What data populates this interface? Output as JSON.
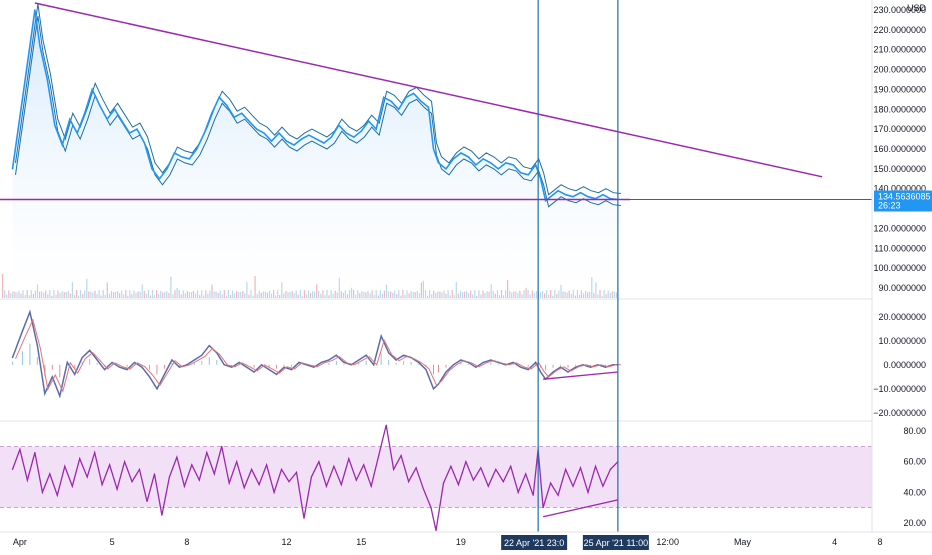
{
  "chart_data": [
    {
      "type": "area",
      "pane": "price",
      "currency": "USD",
      "ylim": [
        85,
        235
      ],
      "y_ticks": [
        "230.0000000",
        "220.0000000",
        "210.0000000",
        "200.0000000",
        "190.0000000",
        "180.0000000",
        "170.0000000",
        "160.0000000",
        "150.0000000",
        "140.0000000",
        "130.0000000",
        "120.0000000",
        "110.0000000",
        "100.0000000",
        "90.0000000"
      ],
      "x_ticks": [
        "Apr",
        "5",
        "8",
        "12",
        "15",
        "19",
        "12:00",
        "May",
        "4",
        "8"
      ],
      "current_price": "134.5636085",
      "countdown": "26:23",
      "series_close": [
        {
          "day": 1.0,
          "v": 150
        },
        {
          "day": 1.4,
          "v": 185
        },
        {
          "day": 1.7,
          "v": 212
        },
        {
          "day": 1.9,
          "v": 230
        },
        {
          "day": 2.1,
          "v": 212
        },
        {
          "day": 2.4,
          "v": 195
        },
        {
          "day": 2.7,
          "v": 172
        },
        {
          "day": 3.0,
          "v": 162
        },
        {
          "day": 3.3,
          "v": 175
        },
        {
          "day": 3.6,
          "v": 168
        },
        {
          "day": 3.9,
          "v": 178
        },
        {
          "day": 4.2,
          "v": 190
        },
        {
          "day": 4.5,
          "v": 182
        },
        {
          "day": 4.8,
          "v": 175
        },
        {
          "day": 5.1,
          "v": 180
        },
        {
          "day": 5.4,
          "v": 174
        },
        {
          "day": 5.7,
          "v": 168
        },
        {
          "day": 6.0,
          "v": 170
        },
        {
          "day": 6.3,
          "v": 163
        },
        {
          "day": 6.6,
          "v": 150
        },
        {
          "day": 6.9,
          "v": 145
        },
        {
          "day": 7.2,
          "v": 150
        },
        {
          "day": 7.5,
          "v": 158
        },
        {
          "day": 7.8,
          "v": 156
        },
        {
          "day": 8.1,
          "v": 155
        },
        {
          "day": 8.4,
          "v": 160
        },
        {
          "day": 8.7,
          "v": 168
        },
        {
          "day": 9.0,
          "v": 178
        },
        {
          "day": 9.3,
          "v": 186
        },
        {
          "day": 9.6,
          "v": 182
        },
        {
          "day": 9.9,
          "v": 176
        },
        {
          "day": 10.2,
          "v": 178
        },
        {
          "day": 10.5,
          "v": 174
        },
        {
          "day": 10.8,
          "v": 170
        },
        {
          "day": 11.1,
          "v": 168
        },
        {
          "day": 11.4,
          "v": 164
        },
        {
          "day": 11.7,
          "v": 168
        },
        {
          "day": 12.0,
          "v": 164
        },
        {
          "day": 12.3,
          "v": 162
        },
        {
          "day": 12.6,
          "v": 165
        },
        {
          "day": 12.9,
          "v": 167
        },
        {
          "day": 13.2,
          "v": 165
        },
        {
          "day": 13.5,
          "v": 163
        },
        {
          "day": 13.8,
          "v": 166
        },
        {
          "day": 14.1,
          "v": 172
        },
        {
          "day": 14.4,
          "v": 168
        },
        {
          "day": 14.7,
          "v": 166
        },
        {
          "day": 15.0,
          "v": 169
        },
        {
          "day": 15.3,
          "v": 174
        },
        {
          "day": 15.6,
          "v": 170
        },
        {
          "day": 15.9,
          "v": 186
        },
        {
          "day": 16.2,
          "v": 184
        },
        {
          "day": 16.5,
          "v": 180
        },
        {
          "day": 16.8,
          "v": 186
        },
        {
          "day": 17.1,
          "v": 188
        },
        {
          "day": 17.4,
          "v": 184
        },
        {
          "day": 17.7,
          "v": 181
        },
        {
          "day": 17.9,
          "v": 160
        },
        {
          "day": 18.1,
          "v": 153
        },
        {
          "day": 18.4,
          "v": 150
        },
        {
          "day": 18.7,
          "v": 155
        },
        {
          "day": 19.0,
          "v": 158
        },
        {
          "day": 19.3,
          "v": 156
        },
        {
          "day": 19.6,
          "v": 152
        },
        {
          "day": 19.9,
          "v": 155
        },
        {
          "day": 20.2,
          "v": 153
        },
        {
          "day": 20.5,
          "v": 150
        },
        {
          "day": 20.8,
          "v": 153
        },
        {
          "day": 21.1,
          "v": 152
        },
        {
          "day": 21.4,
          "v": 148
        },
        {
          "day": 21.7,
          "v": 147
        },
        {
          "day": 22.0,
          "v": 152
        },
        {
          "day": 22.2,
          "v": 145
        },
        {
          "day": 22.4,
          "v": 134
        },
        {
          "day": 22.6,
          "v": 136
        },
        {
          "day": 22.9,
          "v": 139
        },
        {
          "day": 23.2,
          "v": 137
        },
        {
          "day": 23.5,
          "v": 136
        },
        {
          "day": 23.8,
          "v": 138
        },
        {
          "day": 24.1,
          "v": 136
        },
        {
          "day": 24.4,
          "v": 135
        },
        {
          "day": 24.7,
          "v": 137
        },
        {
          "day": 25.0,
          "v": 135
        },
        {
          "day": 25.3,
          "v": 134.56
        }
      ],
      "trendline_resistance": [
        {
          "day": 1.9,
          "v": 233.5
        },
        {
          "day": 33.5,
          "v": 146
        }
      ],
      "horizontal_support": {
        "v": 134.56
      },
      "vertical_markers_day": [
        22.1,
        25.3
      ],
      "time_badges": [
        "22 Apr '21",
        "23:0",
        "25 Apr '21",
        "11:00"
      ],
      "colors": {
        "price_line": "#2196f3",
        "area_fill": "#cfe6fb",
        "trendline": "#9c27b0",
        "marker": "#1e6fa8",
        "badge_bg": "#1e3a5f",
        "price_badge": "#2196f3"
      }
    },
    {
      "type": "line",
      "pane": "oscillator",
      "ylim": [
        -23,
        27
      ],
      "y_ticks": [
        "20.0000000",
        "10.0000000",
        "0.0000000",
        "−10.0000000",
        "−20.0000000"
      ],
      "series": [
        {
          "day": 1.0,
          "v": 3
        },
        {
          "day": 1.4,
          "v": 14
        },
        {
          "day": 1.7,
          "v": 22
        },
        {
          "day": 2.0,
          "v": 8
        },
        {
          "day": 2.3,
          "v": -12
        },
        {
          "day": 2.6,
          "v": -5
        },
        {
          "day": 2.9,
          "v": -13
        },
        {
          "day": 3.2,
          "v": 1
        },
        {
          "day": 3.5,
          "v": -4
        },
        {
          "day": 3.8,
          "v": 3
        },
        {
          "day": 4.1,
          "v": 6
        },
        {
          "day": 4.4,
          "v": 2
        },
        {
          "day": 4.7,
          "v": -2
        },
        {
          "day": 5.0,
          "v": 1
        },
        {
          "day": 5.3,
          "v": -1
        },
        {
          "day": 5.6,
          "v": -2
        },
        {
          "day": 5.9,
          "v": 1
        },
        {
          "day": 6.2,
          "v": -1
        },
        {
          "day": 6.5,
          "v": -5
        },
        {
          "day": 6.8,
          "v": -10
        },
        {
          "day": 7.1,
          "v": -4
        },
        {
          "day": 7.4,
          "v": 2
        },
        {
          "day": 7.7,
          "v": -1
        },
        {
          "day": 8.0,
          "v": 0
        },
        {
          "day": 8.3,
          "v": 2
        },
        {
          "day": 8.6,
          "v": 4
        },
        {
          "day": 8.9,
          "v": 8
        },
        {
          "day": 9.2,
          "v": 5
        },
        {
          "day": 9.5,
          "v": 0
        },
        {
          "day": 9.8,
          "v": -1
        },
        {
          "day": 10.1,
          "v": 1
        },
        {
          "day": 10.4,
          "v": -1
        },
        {
          "day": 10.7,
          "v": -3
        },
        {
          "day": 11.0,
          "v": 0
        },
        {
          "day": 11.3,
          "v": -2
        },
        {
          "day": 11.6,
          "v": -4
        },
        {
          "day": 11.9,
          "v": -1
        },
        {
          "day": 12.2,
          "v": -2
        },
        {
          "day": 12.5,
          "v": 1
        },
        {
          "day": 12.8,
          "v": 0
        },
        {
          "day": 13.1,
          "v": -1
        },
        {
          "day": 13.4,
          "v": 1
        },
        {
          "day": 13.7,
          "v": 2
        },
        {
          "day": 14.0,
          "v": 4
        },
        {
          "day": 14.3,
          "v": 1
        },
        {
          "day": 14.6,
          "v": 0
        },
        {
          "day": 14.9,
          "v": 2
        },
        {
          "day": 15.2,
          "v": 4
        },
        {
          "day": 15.5,
          "v": 0
        },
        {
          "day": 15.8,
          "v": 12
        },
        {
          "day": 16.1,
          "v": 5
        },
        {
          "day": 16.4,
          "v": 2
        },
        {
          "day": 16.7,
          "v": 4
        },
        {
          "day": 17.0,
          "v": 3
        },
        {
          "day": 17.3,
          "v": 1
        },
        {
          "day": 17.6,
          "v": -2
        },
        {
          "day": 17.9,
          "v": -10
        },
        {
          "day": 18.1,
          "v": -8
        },
        {
          "day": 18.4,
          "v": -3
        },
        {
          "day": 18.7,
          "v": 0
        },
        {
          "day": 19.0,
          "v": 2
        },
        {
          "day": 19.3,
          "v": 1
        },
        {
          "day": 19.6,
          "v": -1
        },
        {
          "day": 19.9,
          "v": 1
        },
        {
          "day": 20.2,
          "v": 2
        },
        {
          "day": 20.5,
          "v": 1
        },
        {
          "day": 20.8,
          "v": 0
        },
        {
          "day": 21.1,
          "v": 1
        },
        {
          "day": 21.4,
          "v": -1
        },
        {
          "day": 21.7,
          "v": -2
        },
        {
          "day": 22.0,
          "v": 1
        },
        {
          "day": 22.2,
          "v": -3
        },
        {
          "day": 22.4,
          "v": -6
        },
        {
          "day": 22.7,
          "v": -3
        },
        {
          "day": 23.0,
          "v": -1
        },
        {
          "day": 23.3,
          "v": -3
        },
        {
          "day": 23.6,
          "v": -1
        },
        {
          "day": 23.9,
          "v": 0
        },
        {
          "day": 24.2,
          "v": -1
        },
        {
          "day": 24.5,
          "v": 0
        },
        {
          "day": 24.8,
          "v": -1
        },
        {
          "day": 25.1,
          "v": 0
        },
        {
          "day": 25.3,
          "v": 0
        }
      ],
      "divergence_line": [
        {
          "day": 22.3,
          "v": -6
        },
        {
          "day": 25.3,
          "v": -3
        }
      ],
      "colors": {
        "line": "#5b6cae",
        "divergence": "#9c27b0"
      }
    },
    {
      "type": "line",
      "pane": "rsi",
      "ylim": [
        14,
        86
      ],
      "y_ticks": [
        "80.00",
        "60.00",
        "40.00",
        "20.00"
      ],
      "band": [
        30,
        70
      ],
      "series": [
        {
          "day": 1.0,
          "v": 55
        },
        {
          "day": 1.3,
          "v": 68
        },
        {
          "day": 1.6,
          "v": 48
        },
        {
          "day": 1.9,
          "v": 66
        },
        {
          "day": 2.2,
          "v": 40
        },
        {
          "day": 2.5,
          "v": 52
        },
        {
          "day": 2.8,
          "v": 38
        },
        {
          "day": 3.1,
          "v": 57
        },
        {
          "day": 3.4,
          "v": 44
        },
        {
          "day": 3.7,
          "v": 62
        },
        {
          "day": 4.0,
          "v": 50
        },
        {
          "day": 4.3,
          "v": 66
        },
        {
          "day": 4.6,
          "v": 45
        },
        {
          "day": 4.9,
          "v": 58
        },
        {
          "day": 5.2,
          "v": 42
        },
        {
          "day": 5.5,
          "v": 60
        },
        {
          "day": 5.8,
          "v": 47
        },
        {
          "day": 6.1,
          "v": 55
        },
        {
          "day": 6.4,
          "v": 34
        },
        {
          "day": 6.7,
          "v": 52
        },
        {
          "day": 7.0,
          "v": 25
        },
        {
          "day": 7.3,
          "v": 50
        },
        {
          "day": 7.6,
          "v": 63
        },
        {
          "day": 7.9,
          "v": 44
        },
        {
          "day": 8.2,
          "v": 58
        },
        {
          "day": 8.5,
          "v": 48
        },
        {
          "day": 8.8,
          "v": 66
        },
        {
          "day": 9.1,
          "v": 52
        },
        {
          "day": 9.4,
          "v": 70
        },
        {
          "day": 9.7,
          "v": 46
        },
        {
          "day": 10.0,
          "v": 60
        },
        {
          "day": 10.3,
          "v": 43
        },
        {
          "day": 10.6,
          "v": 55
        },
        {
          "day": 10.9,
          "v": 45
        },
        {
          "day": 11.2,
          "v": 58
        },
        {
          "day": 11.5,
          "v": 40
        },
        {
          "day": 11.8,
          "v": 55
        },
        {
          "day": 12.1,
          "v": 47
        },
        {
          "day": 12.4,
          "v": 53
        },
        {
          "day": 12.7,
          "v": 23
        },
        {
          "day": 13.0,
          "v": 50
        },
        {
          "day": 13.3,
          "v": 60
        },
        {
          "day": 13.6,
          "v": 44
        },
        {
          "day": 13.9,
          "v": 57
        },
        {
          "day": 14.2,
          "v": 45
        },
        {
          "day": 14.5,
          "v": 62
        },
        {
          "day": 14.8,
          "v": 48
        },
        {
          "day": 15.1,
          "v": 58
        },
        {
          "day": 15.4,
          "v": 44
        },
        {
          "day": 15.7,
          "v": 64
        },
        {
          "day": 16.0,
          "v": 84
        },
        {
          "day": 16.3,
          "v": 55
        },
        {
          "day": 16.6,
          "v": 64
        },
        {
          "day": 16.9,
          "v": 47
        },
        {
          "day": 17.2,
          "v": 56
        },
        {
          "day": 17.5,
          "v": 42
        },
        {
          "day": 17.8,
          "v": 30
        },
        {
          "day": 18.0,
          "v": 15
        },
        {
          "day": 18.3,
          "v": 46
        },
        {
          "day": 18.6,
          "v": 57
        },
        {
          "day": 18.9,
          "v": 45
        },
        {
          "day": 19.2,
          "v": 60
        },
        {
          "day": 19.5,
          "v": 48
        },
        {
          "day": 19.8,
          "v": 56
        },
        {
          "day": 20.1,
          "v": 44
        },
        {
          "day": 20.4,
          "v": 55
        },
        {
          "day": 20.7,
          "v": 47
        },
        {
          "day": 21.0,
          "v": 57
        },
        {
          "day": 21.3,
          "v": 40
        },
        {
          "day": 21.6,
          "v": 52
        },
        {
          "day": 21.9,
          "v": 38
        },
        {
          "day": 22.1,
          "v": 68
        },
        {
          "day": 22.3,
          "v": 30
        },
        {
          "day": 22.6,
          "v": 46
        },
        {
          "day": 22.9,
          "v": 38
        },
        {
          "day": 23.2,
          "v": 55
        },
        {
          "day": 23.5,
          "v": 44
        },
        {
          "day": 23.8,
          "v": 56
        },
        {
          "day": 24.1,
          "v": 40
        },
        {
          "day": 24.4,
          "v": 57
        },
        {
          "day": 24.7,
          "v": 44
        },
        {
          "day": 25.0,
          "v": 55
        },
        {
          "day": 25.3,
          "v": 60
        }
      ],
      "divergence_line": [
        {
          "day": 22.3,
          "v": 24
        },
        {
          "day": 25.3,
          "v": 35
        }
      ],
      "colors": {
        "line": "#9c27b0",
        "band_fill": "#f2e0f7",
        "band_border": "#c9a3d4",
        "divergence": "#9c27b0"
      }
    }
  ]
}
